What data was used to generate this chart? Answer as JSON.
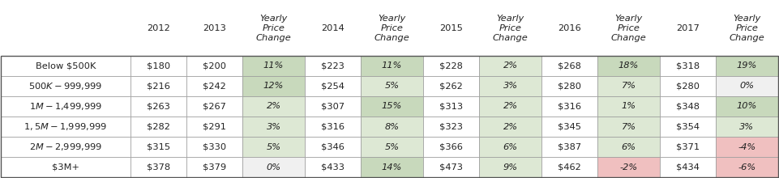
{
  "col_headers": [
    "",
    "2012",
    "2013",
    "Yearly\nPrice\nChange",
    "2014",
    "Yearly\nPrice\nChange",
    "2015",
    "Yearly\nPrice\nChange",
    "2016",
    "Yearly\nPrice\nChange",
    "2017",
    "Yearly\nPrice\nChange"
  ],
  "rows": [
    [
      "Below $500K",
      "$180",
      "$200",
      "11%",
      "$223",
      "11%",
      "$228",
      "2%",
      "$268",
      "18%",
      "$318",
      "19%"
    ],
    [
      "$500K-$999,999",
      "$216",
      "$242",
      "12%",
      "$254",
      "5%",
      "$262",
      "3%",
      "$280",
      "7%",
      "$280",
      "0%"
    ],
    [
      "$1M - $1,499,999",
      "$263",
      "$267",
      "2%",
      "$307",
      "15%",
      "$313",
      "2%",
      "$316",
      "1%",
      "$348",
      "10%"
    ],
    [
      "$1,5M - $1,999,999",
      "$282",
      "$291",
      "3%",
      "$316",
      "8%",
      "$323",
      "2%",
      "$345",
      "7%",
      "$354",
      "3%"
    ],
    [
      "$2M - $2,999,999",
      "$315",
      "$330",
      "5%",
      "$346",
      "5%",
      "$366",
      "6%",
      "$387",
      "6%",
      "$371",
      "-4%"
    ],
    [
      "$3M+",
      "$378",
      "$379",
      "0%",
      "$433",
      "14%",
      "$473",
      "9%",
      "$462",
      "-2%",
      "$434",
      "-6%"
    ]
  ],
  "cell_colors": {
    "0,3": "#c8d9bc",
    "0,5": "#c8d9bc",
    "0,7": "#dde8d4",
    "0,9": "#c8d9bc",
    "0,11": "#c8d9bc",
    "1,3": "#c8d9bc",
    "1,5": "#dde8d4",
    "1,7": "#dde8d4",
    "1,9": "#dde8d4",
    "1,11": "#f0f0f0",
    "2,3": "#dde8d4",
    "2,5": "#c8d9bc",
    "2,7": "#dde8d4",
    "2,9": "#dde8d4",
    "2,11": "#c8d9bc",
    "3,3": "#dde8d4",
    "3,5": "#dde8d4",
    "3,7": "#dde8d4",
    "3,9": "#dde8d4",
    "3,11": "#dde8d4",
    "4,3": "#dde8d4",
    "4,5": "#dde8d4",
    "4,7": "#dde8d4",
    "4,9": "#dde8d4",
    "4,11": "#f0c0c0",
    "5,3": "#f0f0f0",
    "5,5": "#c8d9bc",
    "5,7": "#dde8d4",
    "5,9": "#f0c0c0",
    "5,11": "#f0c0c0"
  },
  "default_cell_bg": "#ffffff",
  "grid_color": "#999999",
  "text_color": "#222222",
  "italic_cols": [
    3,
    5,
    7,
    9,
    11
  ],
  "col_widths": [
    1.58,
    0.68,
    0.68,
    0.76,
    0.68,
    0.76,
    0.68,
    0.76,
    0.68,
    0.76,
    0.68,
    0.76
  ],
  "font_size": 8.2,
  "header_font_size": 8.2
}
